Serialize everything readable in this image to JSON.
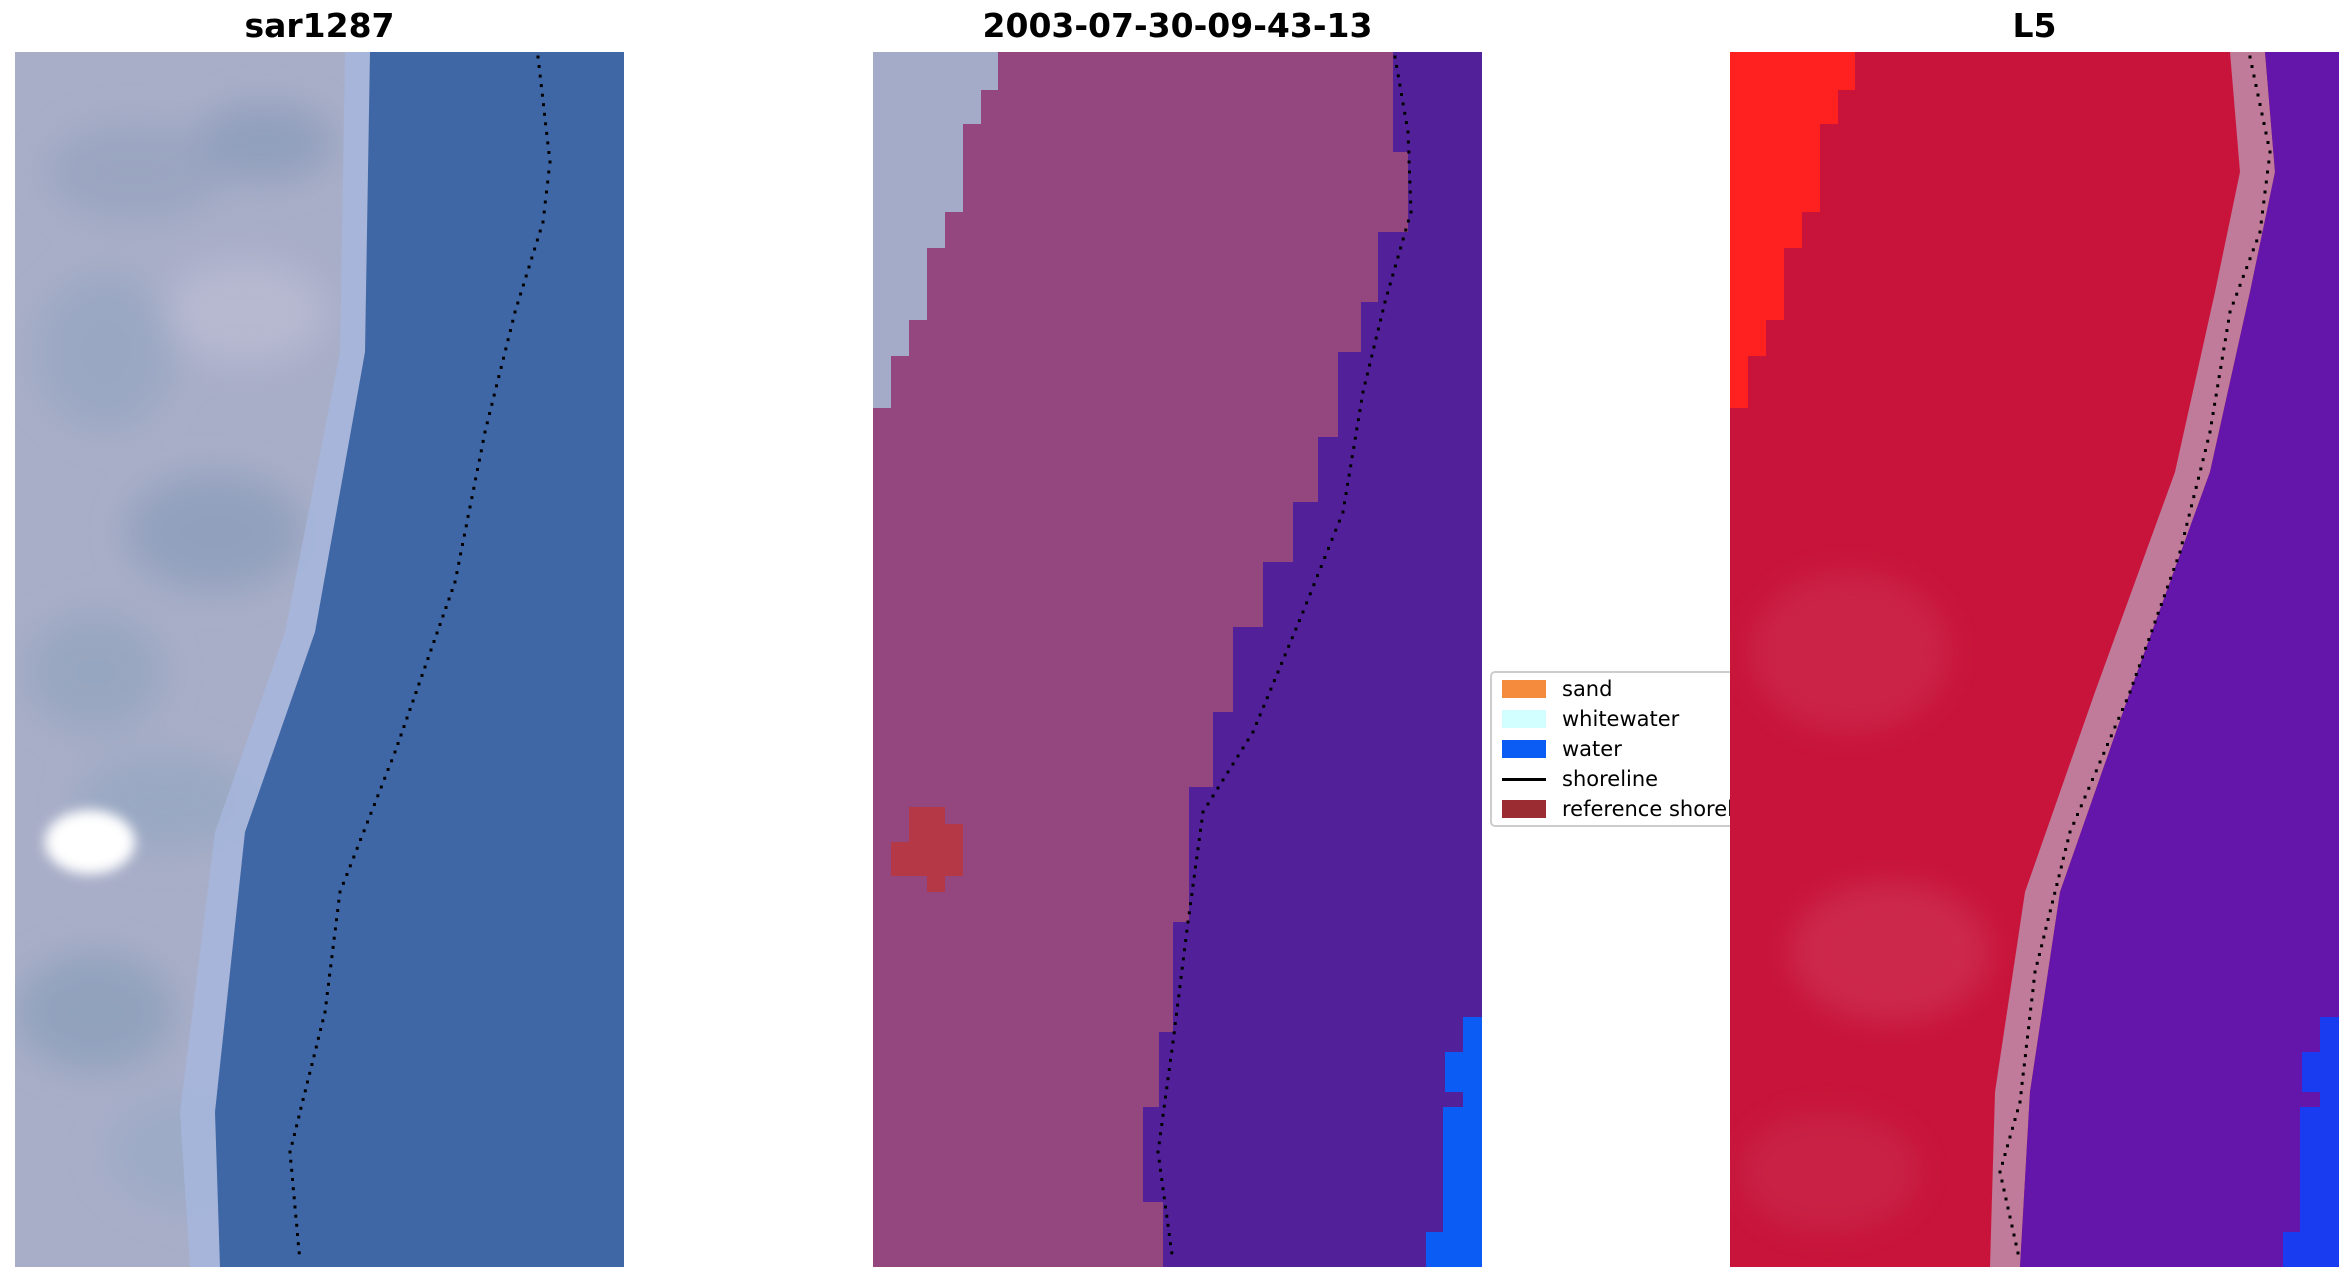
{
  "panels": [
    {
      "title": "sar1287"
    },
    {
      "title": "2003-07-30-09-43-13"
    },
    {
      "title": "L5"
    }
  ],
  "legend": {
    "items": [
      {
        "label": "sand",
        "color": "#f58b3c",
        "kind": "patch"
      },
      {
        "label": "whitewater",
        "color": "#d2ffff",
        "kind": "patch"
      },
      {
        "label": "water",
        "color": "#0a5cf5",
        "kind": "patch"
      },
      {
        "label": "shoreline",
        "color": "#000000",
        "kind": "line"
      },
      {
        "label": "reference shoreline",
        "color": "#9b2d32",
        "kind": "patch"
      }
    ]
  },
  "colors": {
    "rgb_land": "#a9aec8",
    "rgb_water": "#3f67a6",
    "classified_land": "#94467f",
    "classified_water": "#52219a",
    "classified_whitewater": "#a3abc9",
    "classified_blob": "#b53846",
    "l5_land": "#c8143a",
    "l5_land_bright": "#ff2020",
    "l5_water": "#6416aa",
    "l5_band": "#c07a9a"
  }
}
